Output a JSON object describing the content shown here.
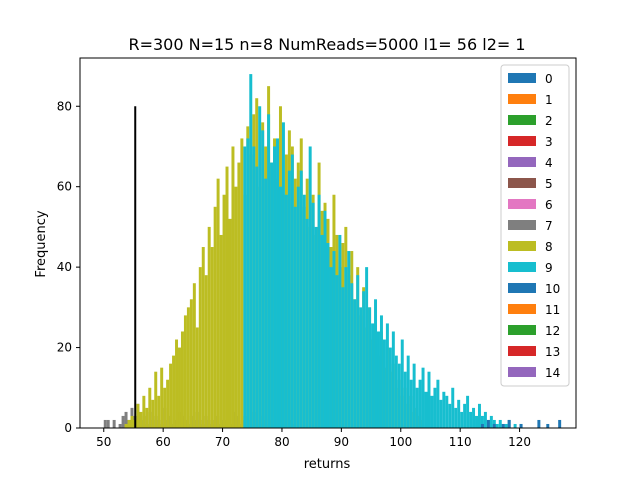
{
  "chart_data": {
    "type": "histogram",
    "title": "R=300 N=15 n=8 NumReads=5000 l1= 56 l2= 1",
    "xlabel": "returns",
    "ylabel": "Frequency",
    "xlim": [
      46,
      129.5
    ],
    "ylim": [
      0,
      92
    ],
    "x_ticks": [
      50,
      60,
      70,
      80,
      90,
      100,
      110,
      120
    ],
    "y_ticks": [
      0,
      20,
      40,
      60,
      80
    ],
    "legend_position": "top-right",
    "legend": [
      "0",
      "1",
      "2",
      "3",
      "4",
      "5",
      "6",
      "7",
      "8",
      "9",
      "10",
      "11",
      "12",
      "13",
      "14"
    ],
    "colors": [
      "#1f77b4",
      "#ff7f0e",
      "#2ca02c",
      "#d62728",
      "#9467bd",
      "#8c564b",
      "#e377c2",
      "#7f7f7f",
      "#bcbd22",
      "#17becf",
      "#1f77b4",
      "#ff7f0e",
      "#2ca02c",
      "#d62728",
      "#9467bd"
    ],
    "vertical_line": {
      "x": 55.3,
      "y_top": 80,
      "color": "#000000"
    },
    "series": [
      {
        "name": "7",
        "bin_start": 49.5,
        "bin_width": 0.5,
        "values": [
          0,
          2,
          2,
          0,
          2,
          0,
          1,
          3,
          4,
          2,
          5,
          3,
          6,
          2,
          3,
          1,
          4,
          2,
          3,
          2,
          1,
          5,
          2,
          3,
          1,
          2,
          4,
          3,
          2,
          1,
          3,
          2,
          4,
          2,
          1,
          3,
          2,
          1,
          2,
          3,
          1,
          2,
          2,
          1,
          4,
          3,
          1,
          2,
          3,
          2,
          1,
          4,
          2,
          1,
          3,
          2,
          1,
          2,
          1,
          3,
          2,
          1,
          0,
          2,
          1
        ]
      },
      {
        "name": "8",
        "bin_start": 53.5,
        "bin_width": 0.5,
        "values": [
          1,
          2,
          3,
          2,
          6,
          4,
          8,
          5,
          10,
          7,
          14,
          8,
          15,
          10,
          12,
          16,
          18,
          22,
          20,
          24,
          28,
          30,
          32,
          36,
          25,
          40,
          45,
          38,
          50,
          45,
          55,
          62,
          48,
          58,
          65,
          52,
          70,
          60,
          66,
          72,
          58,
          75,
          68,
          78,
          82,
          60,
          76,
          70,
          85,
          66,
          72,
          62,
          80,
          58,
          68,
          74,
          70,
          62,
          66,
          72,
          55,
          62,
          50,
          58,
          48,
          66,
          54,
          56,
          52,
          45,
          58,
          48,
          40,
          46,
          50,
          38,
          44,
          32,
          40,
          28,
          35,
          25,
          30,
          22,
          26,
          18,
          24,
          15,
          20,
          14,
          16,
          10,
          12,
          8,
          10,
          6,
          8,
          4,
          5,
          3,
          2
        ]
      },
      {
        "name": "9",
        "bin_start": 73.5,
        "bin_width": 0.5,
        "values": [
          70,
          72,
          88,
          70,
          65,
          80,
          74,
          62,
          78,
          66,
          70,
          72,
          60,
          76,
          58,
          64,
          68,
          55,
          60,
          64,
          58,
          52,
          70,
          56,
          50,
          58,
          48,
          54,
          46,
          40,
          44,
          38,
          48,
          35,
          40,
          44,
          36,
          32,
          38,
          30,
          34,
          40,
          30,
          26,
          32,
          24,
          28,
          22,
          26,
          20,
          24,
          18,
          16,
          22,
          14,
          18,
          12,
          16,
          10,
          12,
          15,
          9,
          14,
          8,
          10,
          12,
          7,
          9,
          8,
          6,
          10,
          5,
          7,
          4,
          6,
          8,
          4,
          5,
          3,
          6,
          3,
          4,
          2,
          3,
          2,
          1,
          2,
          1,
          1,
          2,
          0,
          1,
          0,
          1
        ]
      },
      {
        "name": "10",
        "bin_start": 113.5,
        "bin_width": 0.5,
        "values": [
          1,
          0,
          2,
          0,
          1,
          0,
          0,
          1,
          0,
          2,
          0,
          0,
          0,
          1,
          0,
          0,
          0,
          0,
          0,
          2,
          0,
          0,
          1,
          0,
          0,
          0,
          2
        ]
      }
    ]
  }
}
